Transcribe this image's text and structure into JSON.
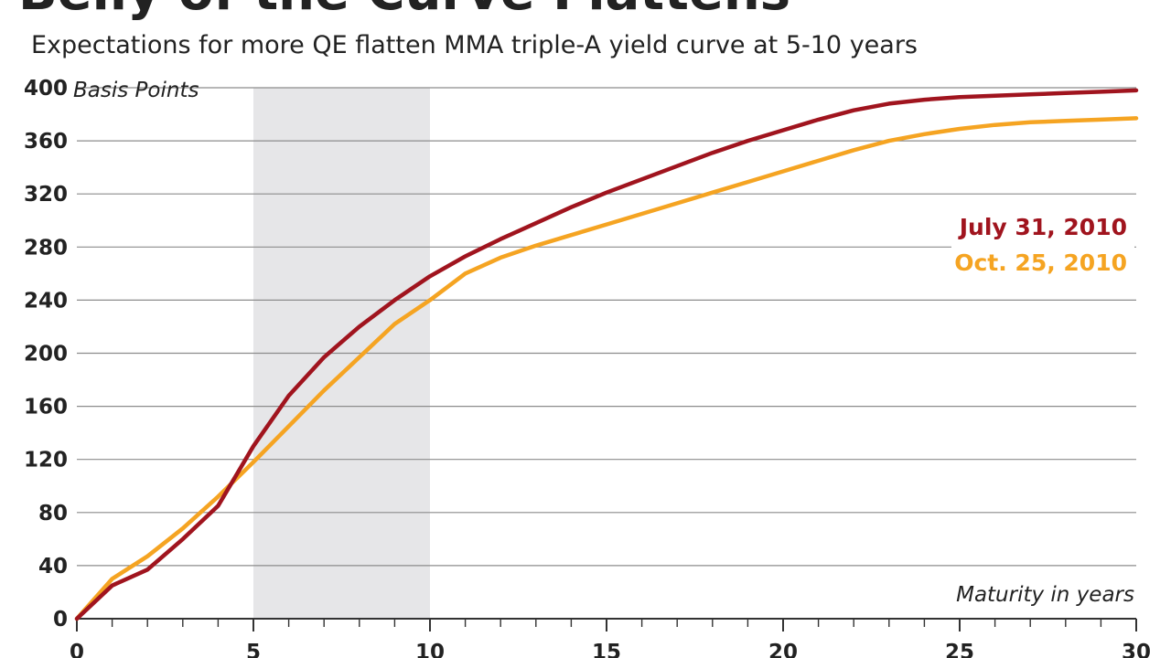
{
  "chart_data": {
    "type": "line",
    "title": "Belly of the Curve Flattens",
    "subtitle": "Expectations for more QE flatten MMA triple-A yield curve at 5-10 years",
    "ylabel": "Basis Points",
    "xlabel": "Maturity in years",
    "xlim": [
      0,
      30
    ],
    "ylim": [
      0,
      400
    ],
    "yticks": [
      0,
      40,
      80,
      120,
      160,
      200,
      240,
      280,
      320,
      360,
      400
    ],
    "xticks": [
      0,
      5,
      10,
      15,
      20,
      25,
      30
    ],
    "grid": "horizontal",
    "highlight_band": [
      5,
      10
    ],
    "legend_position": "right",
    "series": [
      {
        "name": "July 31, 2010",
        "color": "#a0141e",
        "x": [
          0,
          1,
          2,
          3,
          4,
          5,
          6,
          7,
          8,
          9,
          10,
          11,
          12,
          13,
          14,
          15,
          16,
          17,
          18,
          19,
          20,
          21,
          22,
          23,
          24,
          25,
          26,
          27,
          28,
          29,
          30
        ],
        "y": [
          0,
          25,
          37,
          60,
          85,
          130,
          168,
          197,
          220,
          240,
          258,
          273,
          286,
          298,
          310,
          321,
          331,
          341,
          351,
          360,
          368,
          376,
          383,
          388,
          391,
          393,
          394,
          395,
          396,
          397,
          398
        ]
      },
      {
        "name": "Oct. 25, 2010",
        "color": "#f5a422",
        "x": [
          0,
          1,
          2,
          3,
          4,
          5,
          6,
          7,
          8,
          9,
          10,
          11,
          12,
          13,
          14,
          15,
          16,
          17,
          18,
          19,
          20,
          21,
          22,
          23,
          24,
          25,
          26,
          27,
          28,
          29,
          30
        ],
        "y": [
          0,
          30,
          47,
          68,
          92,
          118,
          145,
          172,
          197,
          222,
          240,
          260,
          272,
          281,
          289,
          297,
          305,
          313,
          321,
          329,
          337,
          345,
          353,
          360,
          365,
          369,
          372,
          374,
          375,
          376,
          377
        ]
      }
    ]
  }
}
